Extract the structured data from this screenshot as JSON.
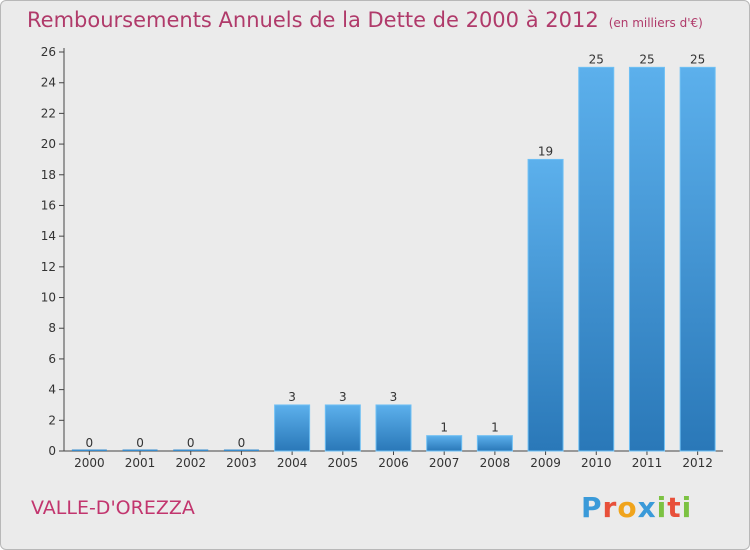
{
  "header": {
    "title": "Remboursements Annuels de la Dette de 2000 à 2012",
    "unit": "(en milliers d'€)"
  },
  "footer": {
    "commune": "VALLE-D'OREZZA",
    "logo_letters": [
      "P",
      "r",
      "o",
      "x",
      "i",
      "t",
      "i"
    ],
    "logo_colors": [
      "#3a9ad9",
      "#e8503a",
      "#f0a41c",
      "#3a9ad9",
      "#7cc242",
      "#e8503a",
      "#7cc242"
    ]
  },
  "chart_data": {
    "type": "bar",
    "title": "Remboursements Annuels de la Dette de 2000 à 2012",
    "xlabel": "",
    "ylabel": "",
    "categories": [
      "2000",
      "2001",
      "2002",
      "2003",
      "2004",
      "2005",
      "2006",
      "2007",
      "2008",
      "2009",
      "2010",
      "2011",
      "2012"
    ],
    "values": [
      0,
      0,
      0,
      0,
      3,
      3,
      3,
      1,
      1,
      19,
      25,
      25,
      25
    ],
    "data_labels": [
      "0",
      "0",
      "0",
      "0",
      "3",
      "3",
      "3",
      "1",
      "1",
      "19",
      "25",
      "25",
      "25"
    ],
    "ylim": [
      0,
      26
    ],
    "yticks": [
      0,
      2,
      4,
      6,
      8,
      10,
      12,
      14,
      16,
      18,
      20,
      22,
      24,
      26
    ],
    "grid": false,
    "bar_color_top": "#5cb0ec",
    "bar_color_bottom": "#2a78b8"
  }
}
